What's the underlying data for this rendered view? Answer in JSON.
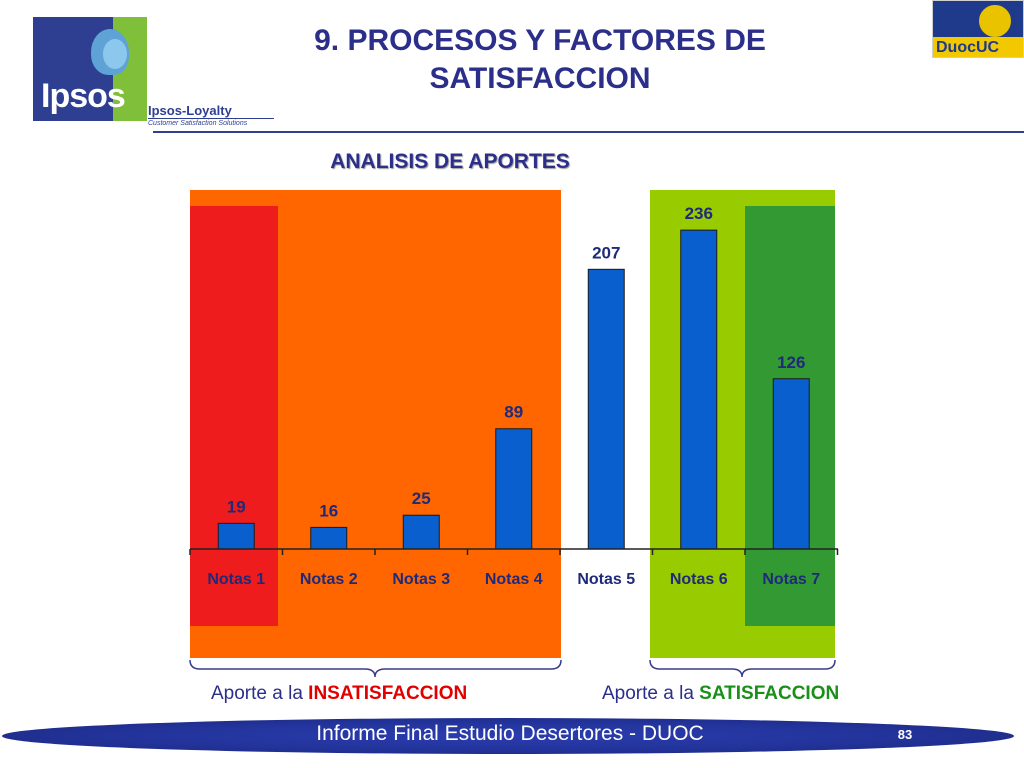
{
  "header": {
    "title_line1": "9. PROCESOS Y FACTORES DE",
    "title_line2": "SATISFACCION",
    "ipsos_logo_text": "Ipsos",
    "loyalty_text": "Ipsos-Loyalty",
    "loyalty_subtext": "Customer Satisfaction Solutions",
    "duoc_logo_text": "DuocUC"
  },
  "chart_data": {
    "type": "bar",
    "title": "ANALISIS DE APORTES",
    "categories": [
      "Notas 1",
      "Notas 2",
      "Notas 3",
      "Notas 4",
      "Notas 5",
      "Notas 6",
      "Notas 7"
    ],
    "values": [
      19,
      16,
      25,
      89,
      207,
      236,
      126
    ],
    "bar_color": "#0a5fcf",
    "ylim": [
      0,
      262
    ],
    "grid": false,
    "region_colors": {
      "insatisfaccion": "#ff6600",
      "nota1": "#ee1c1c",
      "satisfaccion": "#99cc00",
      "nota7": "#339933"
    }
  },
  "groups": {
    "insatisfaccion_prefix": "Aporte a la ",
    "insatisfaccion_label": "INSATISFACCION",
    "satisfaccion_prefix": "Aporte a la ",
    "satisfaccion_label": "SATISFACCION"
  },
  "footer": {
    "text": "Informe Final Estudio Desertores - DUOC",
    "page_number": "83"
  }
}
